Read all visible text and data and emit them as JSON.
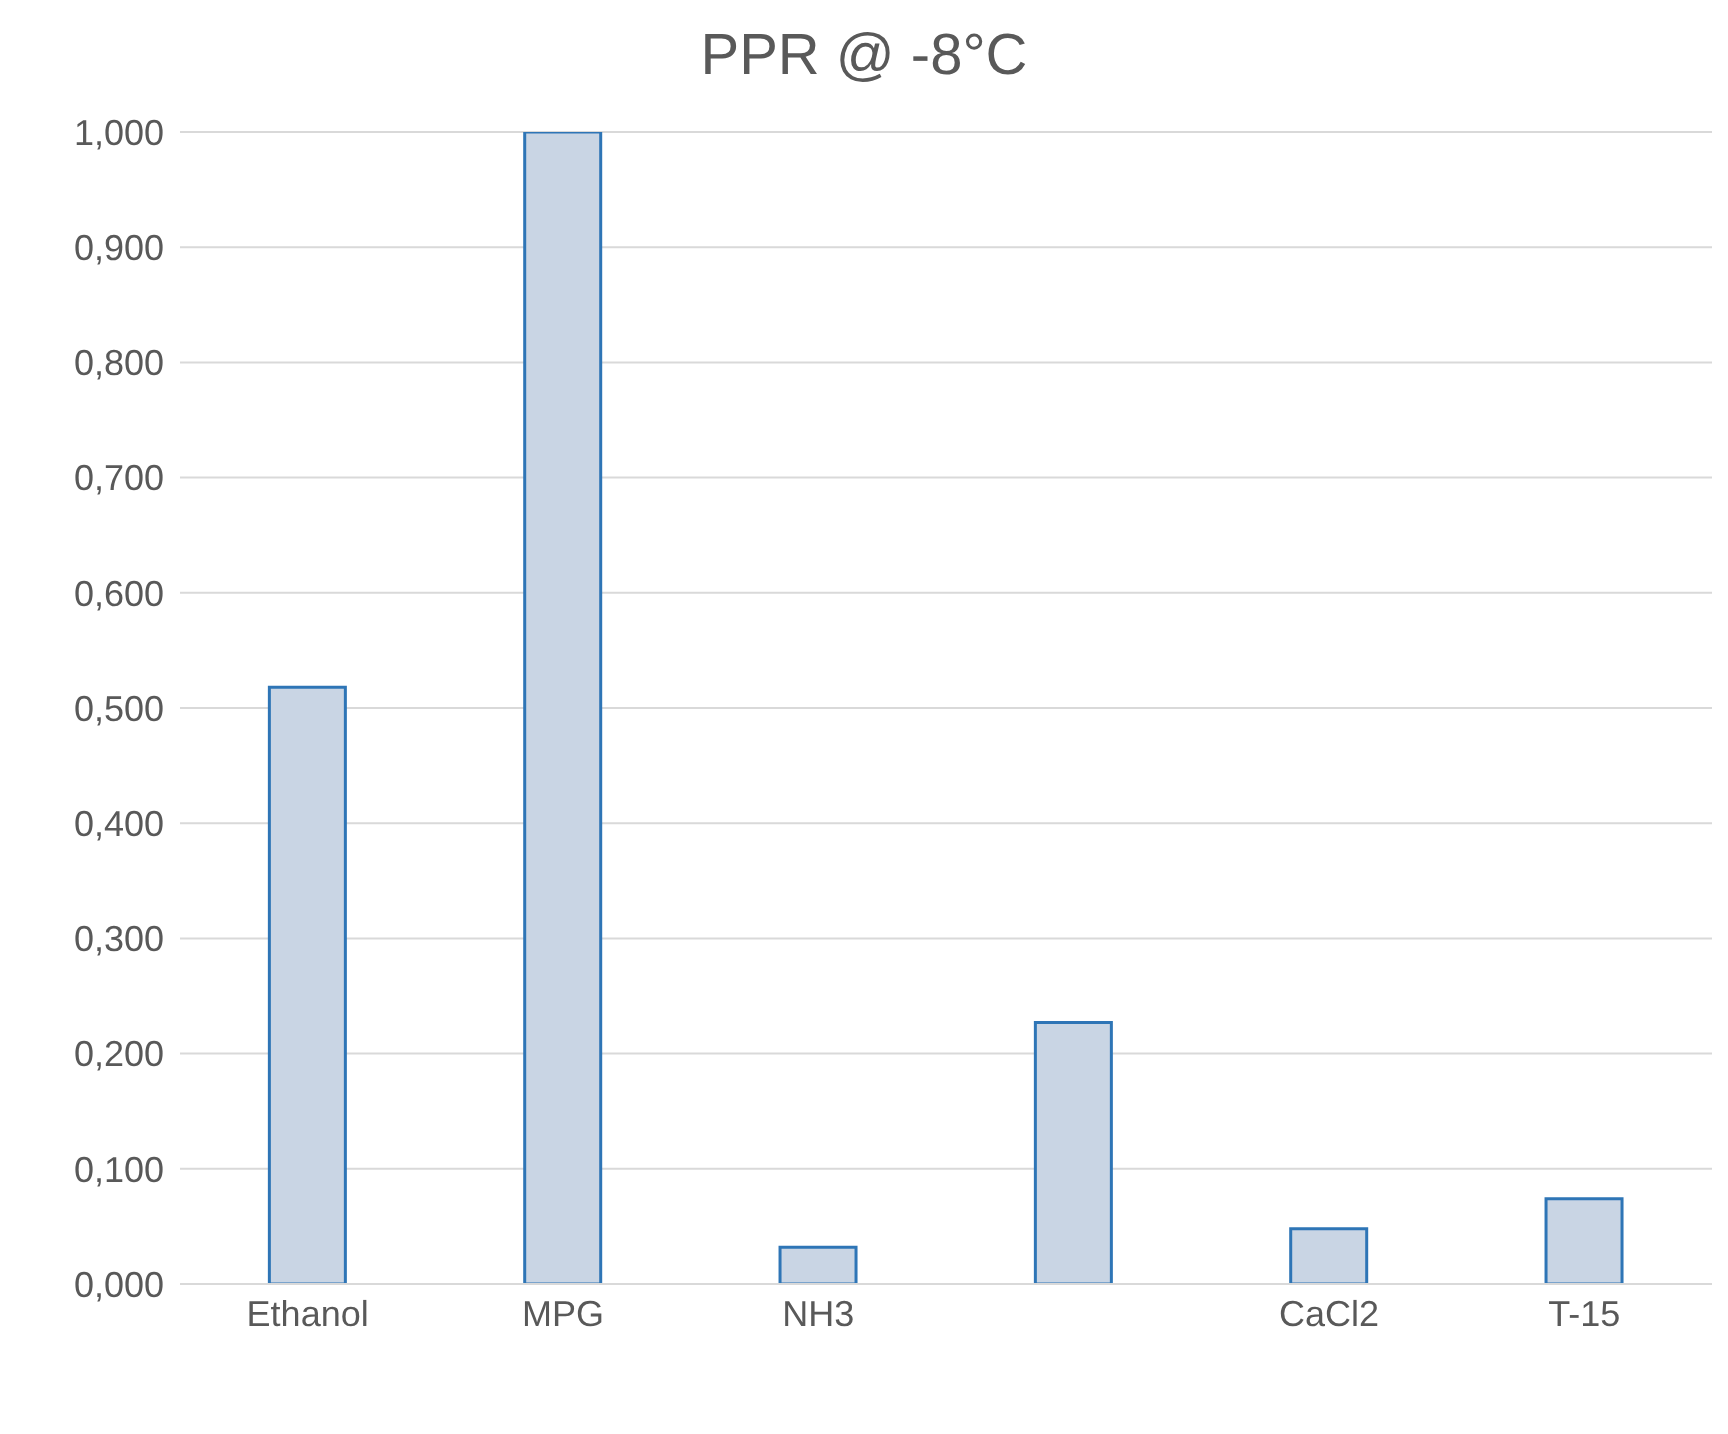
{
  "chart_data": {
    "type": "bar",
    "title": "PPR @ -8°C",
    "categories": [
      "Ethanol",
      "MPG",
      "NH3",
      null,
      "CaCl2",
      "T-15"
    ],
    "values": [
      0.518,
      1.0,
      0.032,
      0.227,
      0.048,
      0.074
    ],
    "color": "#c9d5e4",
    "ylim": [
      0,
      1
    ],
    "yticks": [
      {
        "value": 0,
        "label": "0,000"
      },
      {
        "value": 0.1,
        "label": "0,100"
      },
      {
        "value": 0.2,
        "label": "0,200"
      },
      {
        "value": 0.3,
        "label": "0,300"
      },
      {
        "value": 0.4,
        "label": "0,400"
      },
      {
        "value": 0.5,
        "label": "0,500"
      },
      {
        "value": 0.6,
        "label": "0,600"
      },
      {
        "value": 0.7,
        "label": "0,700"
      },
      {
        "value": 0.8,
        "label": "0,800"
      },
      {
        "value": 0.9,
        "label": "0,900"
      },
      {
        "value": 1,
        "label": "1,000"
      }
    ],
    "grid": "y",
    "legend": false
  }
}
